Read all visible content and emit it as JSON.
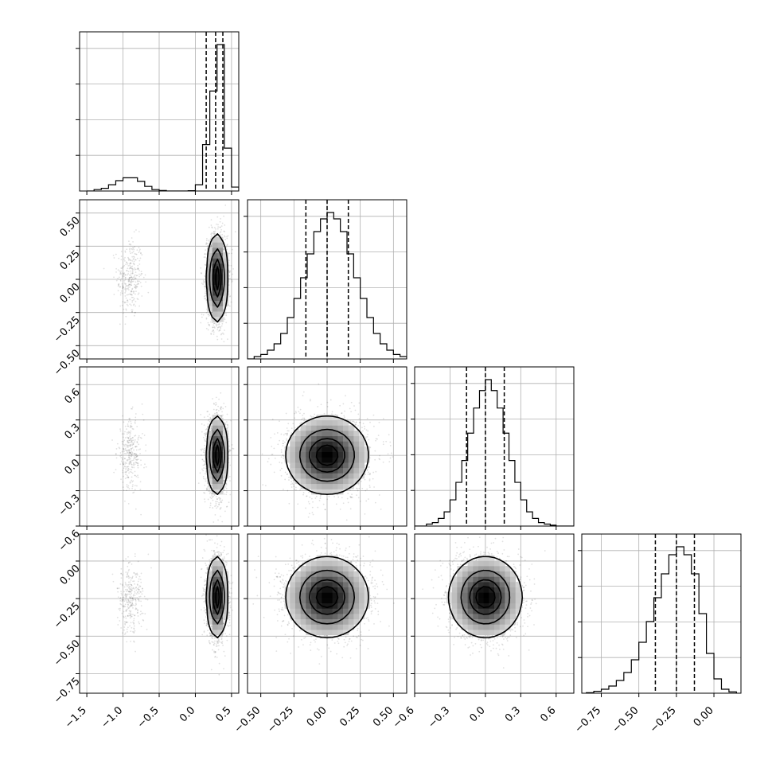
{
  "chart_data": {
    "type": "corner",
    "params": [
      {
        "range": [
          -1.6,
          0.6
        ],
        "ticks": [
          -1.5,
          -1.0,
          -0.5,
          0.0,
          0.5
        ],
        "tick_labels": [
          "−1.5",
          "−1.0",
          "−0.5",
          "0.0",
          "0.5"
        ],
        "quantiles": [
          0.15,
          0.28,
          0.38
        ],
        "hist_x": [
          -1.5,
          -1.4,
          -1.3,
          -1.2,
          -1.1,
          -1.0,
          -0.9,
          -0.8,
          -0.7,
          -0.6,
          -0.5,
          -0.4,
          -0.3,
          -0.2,
          -0.1,
          0.0,
          0.1,
          0.2,
          0.3,
          0.4,
          0.5,
          0.6
        ],
        "hist_counts": [
          0,
          0.8,
          1.5,
          3.5,
          5.8,
          7.4,
          7.4,
          5.4,
          2.6,
          0.8,
          0.3,
          0,
          0,
          0,
          0.2,
          3.5,
          26,
          56,
          82,
          24,
          2.2
        ]
      },
      {
        "range": [
          -0.6,
          0.6
        ],
        "ticks": [
          -0.5,
          -0.25,
          0.0,
          0.25,
          0.5
        ],
        "tick_labels": [
          "−0.50",
          "−0.25",
          "0.00",
          "0.25",
          "0.50"
        ],
        "quantiles": [
          -0.16,
          0.0,
          0.16
        ],
        "hist_x": [
          -0.6,
          -0.55,
          -0.5,
          -0.45,
          -0.4,
          -0.35,
          -0.3,
          -0.25,
          -0.2,
          -0.15,
          -0.1,
          -0.05,
          0.0,
          0.05,
          0.1,
          0.15,
          0.2,
          0.25,
          0.3,
          0.35,
          0.4,
          0.45,
          0.5,
          0.55,
          0.6
        ],
        "hist_counts": [
          0,
          1.5,
          2.8,
          5.5,
          9.5,
          16,
          26,
          38,
          51,
          66,
          80,
          88,
          92,
          88,
          80,
          66,
          51,
          38,
          26,
          16,
          9.5,
          5.5,
          2.8,
          1.5
        ]
      },
      {
        "range": [
          -0.6,
          0.75
        ],
        "ticks": [
          -0.6,
          -0.3,
          0.0,
          0.3,
          0.6
        ],
        "tick_labels": [
          "−0.6",
          "−0.3",
          "0.0",
          "0.3",
          "0.6"
        ],
        "quantiles": [
          -0.16,
          0.0,
          0.16
        ],
        "hist_x": [
          -0.6,
          -0.55,
          -0.5,
          -0.45,
          -0.4,
          -0.35,
          -0.3,
          -0.25,
          -0.2,
          -0.15,
          -0.1,
          -0.05,
          0.0,
          0.05,
          0.1,
          0.15,
          0.2,
          0.25,
          0.3,
          0.35,
          0.4,
          0.45,
          0.5,
          0.55,
          0.6,
          0.65,
          0.7,
          0.75
        ],
        "hist_counts": [
          0,
          0,
          1.8,
          3.2,
          7,
          13,
          24,
          40,
          60,
          85,
          108,
          124,
          134,
          124,
          108,
          85,
          60,
          40,
          24,
          13,
          7,
          3.2,
          1.8,
          0.8,
          0,
          0,
          0
        ]
      },
      {
        "range": [
          -0.88,
          0.18
        ],
        "ticks": [
          -0.75,
          -0.5,
          -0.25,
          0.0
        ],
        "tick_labels": [
          "−0.75",
          "−0.50",
          "−0.25",
          "0.00"
        ],
        "quantiles": [
          -0.39,
          -0.25,
          -0.13
        ],
        "hist_x": [
          -0.85,
          -0.8,
          -0.75,
          -0.7,
          -0.65,
          -0.6,
          -0.55,
          -0.5,
          -0.45,
          -0.4,
          -0.35,
          -0.3,
          -0.25,
          -0.2,
          -0.15,
          -0.1,
          -0.05,
          0.0,
          0.05,
          0.1,
          0.15
        ],
        "hist_counts": [
          0.3,
          1.2,
          2.5,
          4.5,
          8,
          13,
          21,
          32,
          45,
          60,
          75,
          87,
          92,
          87,
          75,
          50,
          25,
          9,
          2.5,
          0.8
        ]
      }
    ],
    "pairs": [
      {
        "col": 0,
        "row": 1,
        "blobs": [
          {
            "cx": -0.9,
            "cy": 0.01,
            "sx": 0.09,
            "sy": 0.15,
            "w": 0.12
          },
          {
            "cx": 0.3,
            "cy": 0.01,
            "sx": 0.07,
            "sy": 0.16,
            "w": 0.88
          }
        ]
      },
      {
        "col": 0,
        "row": 2,
        "blobs": [
          {
            "cx": -0.9,
            "cy": 0.01,
            "sx": 0.09,
            "sy": 0.15,
            "w": 0.12
          },
          {
            "cx": 0.3,
            "cy": 0.0,
            "sx": 0.07,
            "sy": 0.16,
            "w": 0.88
          }
        ]
      },
      {
        "col": 1,
        "row": 2,
        "blobs": [
          {
            "cx": 0.0,
            "cy": 0.0,
            "sx": 0.15,
            "sy": 0.16,
            "w": 1.0
          }
        ]
      },
      {
        "col": 0,
        "row": 3,
        "blobs": [
          {
            "cx": -0.9,
            "cy": -0.25,
            "sx": 0.09,
            "sy": 0.12,
            "w": 0.12
          },
          {
            "cx": 0.3,
            "cy": -0.24,
            "sx": 0.07,
            "sy": 0.13,
            "w": 0.88
          }
        ]
      },
      {
        "col": 1,
        "row": 3,
        "blobs": [
          {
            "cx": 0.0,
            "cy": -0.24,
            "sx": 0.15,
            "sy": 0.13,
            "w": 1.0
          }
        ]
      },
      {
        "col": 2,
        "row": 3,
        "blobs": [
          {
            "cx": 0.0,
            "cy": -0.24,
            "sx": 0.15,
            "sy": 0.13,
            "w": 1.0
          }
        ]
      }
    ],
    "contour_levels": [
      0.118,
      0.393,
      0.675,
      0.865
    ],
    "grid": true,
    "title": "",
    "xlabel": "",
    "ylabel": ""
  }
}
